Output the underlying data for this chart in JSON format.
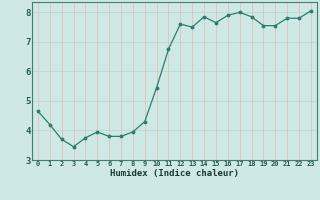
{
  "x": [
    0,
    1,
    2,
    3,
    4,
    5,
    6,
    7,
    8,
    9,
    10,
    11,
    12,
    13,
    14,
    15,
    16,
    17,
    18,
    19,
    20,
    21,
    22,
    23
  ],
  "y": [
    4.65,
    4.2,
    3.7,
    3.45,
    3.75,
    3.95,
    3.8,
    3.8,
    3.95,
    4.3,
    5.45,
    6.75,
    7.6,
    7.5,
    7.85,
    7.65,
    7.9,
    8.0,
    7.85,
    7.55,
    7.55,
    7.8,
    7.8,
    8.05
  ],
  "xlabel": "Humidex (Indice chaleur)",
  "xlim": [
    -0.5,
    23.5
  ],
  "ylim": [
    3.0,
    8.35
  ],
  "yticks": [
    3,
    4,
    5,
    6,
    7,
    8
  ],
  "xtick_labels": [
    "0",
    "1",
    "2",
    "3",
    "4",
    "5",
    "6",
    "7",
    "8",
    "9",
    "10",
    "11",
    "12",
    "13",
    "14",
    "15",
    "16",
    "17",
    "18",
    "19",
    "20",
    "21",
    "22",
    "23"
  ],
  "line_color": "#2d7d6e",
  "marker_color": "#2d7d6e",
  "bg_color": "#cde8e5",
  "grid_color_h": "#b8d4d0",
  "grid_color_v": "#e8b8b8",
  "axis_color": "#4a7a70",
  "text_color": "#2a5a52",
  "xlabel_color": "#1a3a32"
}
